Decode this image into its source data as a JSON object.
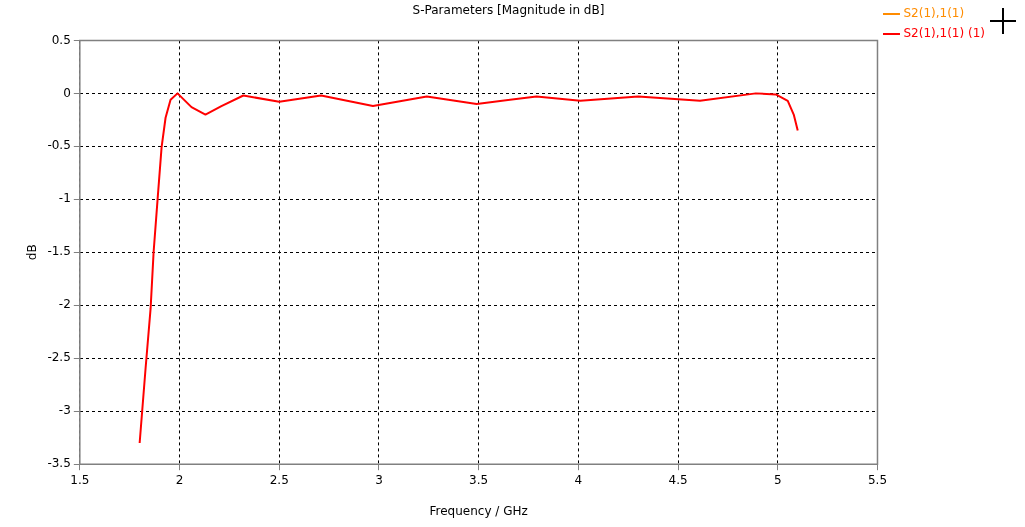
{
  "chart_data": {
    "type": "line",
    "title": "S-Parameters [Magnitude in dB]",
    "xlabel": "Frequency / GHz",
    "ylabel": "dB",
    "xlim": [
      1.5,
      5.5
    ],
    "xticks": [
      1.5,
      2,
      2.5,
      3,
      3.5,
      4,
      4.5,
      5,
      5.5
    ],
    "ylim": [
      -3.5,
      0.5
    ],
    "yticks": [
      -3.5,
      -3,
      -2.5,
      -2,
      -1.5,
      -1,
      -0.5,
      0,
      0.5
    ],
    "grid": true,
    "legend": "top right",
    "marker": "none",
    "line_style": "solid",
    "series": [
      {
        "name": "S2(1),1(1)",
        "color": "#ff8c00"
      },
      {
        "name": "S2(1),1(1) (1)",
        "color": "#ff0000",
        "x": [
          1.8,
          1.83,
          1.855,
          1.87,
          1.89,
          1.91,
          1.93,
          1.955,
          1.99,
          2.06,
          2.13,
          2.21,
          2.32,
          2.5,
          2.71,
          2.97,
          3.24,
          3.49,
          3.79,
          4.01,
          4.3,
          4.61,
          4.89,
          4.99,
          5.05,
          5.08,
          5.1
        ],
        "values": [
          -3.3,
          -2.59,
          -2.03,
          -1.5,
          -1.0,
          -0.51,
          -0.23,
          -0.06,
          0.0,
          -0.13,
          -0.2,
          -0.12,
          -0.02,
          -0.08,
          -0.02,
          -0.12,
          -0.03,
          -0.1,
          -0.03,
          -0.07,
          -0.03,
          -0.07,
          0.0,
          -0.01,
          -0.07,
          -0.2,
          -0.35
        ]
      }
    ]
  }
}
